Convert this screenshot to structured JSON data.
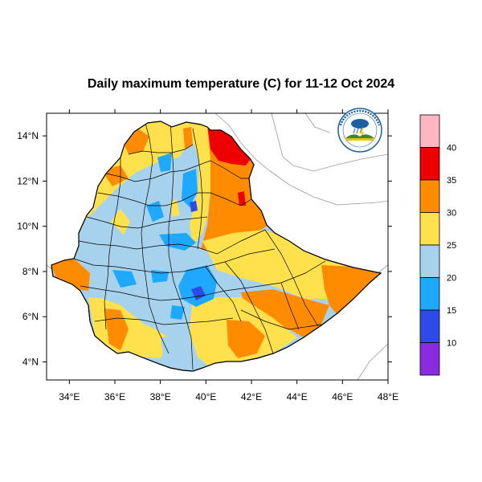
{
  "title": "Daily maximum temperature (C) for 11-12 Oct 2024",
  "map": {
    "lon_range": [
      33,
      48
    ],
    "lat_range": [
      3.2,
      15
    ],
    "x_ticks": [
      "34°E",
      "36°E",
      "38°E",
      "40°E",
      "42°E",
      "44°E",
      "46°E",
      "48°E"
    ],
    "x_tick_values": [
      34,
      36,
      38,
      40,
      42,
      44,
      46,
      48
    ],
    "y_ticks": [
      "14°N",
      "12°N",
      "10°N",
      "8°N",
      "6°N",
      "4°N"
    ],
    "y_tick_values": [
      14,
      12,
      10,
      8,
      6,
      4
    ],
    "country_fill": "#a6d2ee"
  },
  "legend": {
    "labels": [
      "40",
      "35",
      "30",
      "25",
      "20",
      "15",
      "10"
    ],
    "colors": [
      "#ffb6c1",
      "#ee0000",
      "#ff8c00",
      "#ffe14d",
      "#a6d2ee",
      "#1ea9ff",
      "#2e4ae8",
      "#8a2be2"
    ]
  },
  "logo": {
    "name": "meteorology-agency-logo",
    "colors": [
      "#1a5fa0",
      "#2e8b3a",
      "#f5c000"
    ]
  }
}
